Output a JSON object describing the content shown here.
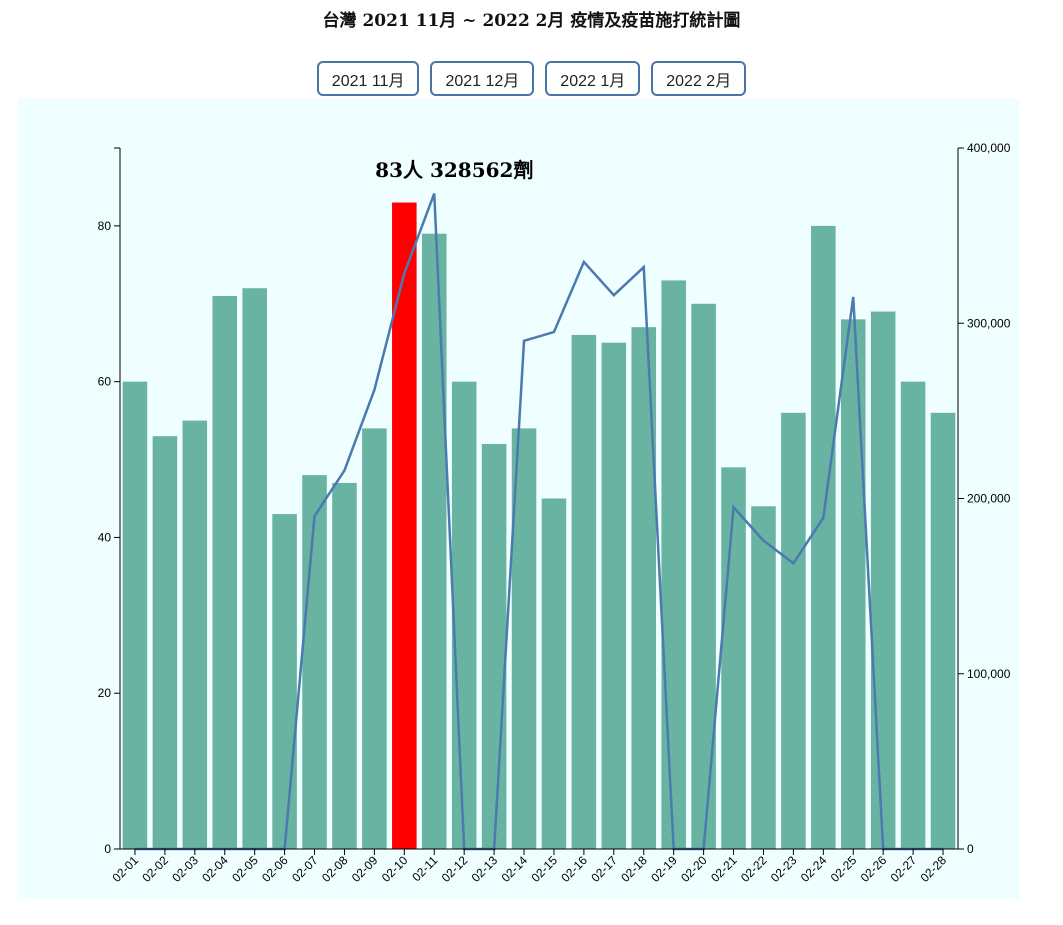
{
  "title": "台灣 2021 11月 ~ 2022 2月 疫情及疫苗施打統計圖",
  "buttons": [
    {
      "label": "2021 11月"
    },
    {
      "label": "2021 12月"
    },
    {
      "label": "2022 1月"
    },
    {
      "label": "2022 2月"
    }
  ],
  "colors": {
    "bar": "#69b3a2",
    "highlight_bar": "#ff0000",
    "line": "#4a7ab0",
    "background": "#effefe"
  },
  "chart_data": {
    "type": "bar",
    "categories": [
      "02-01",
      "02-02",
      "02-03",
      "02-04",
      "02-05",
      "02-06",
      "02-07",
      "02-08",
      "02-09",
      "02-10",
      "02-11",
      "02-12",
      "02-13",
      "02-14",
      "02-15",
      "02-16",
      "02-17",
      "02-18",
      "02-19",
      "02-20",
      "02-21",
      "02-22",
      "02-23",
      "02-24",
      "02-25",
      "02-26",
      "02-27",
      "02-28"
    ],
    "series": [
      {
        "type": "bar",
        "axis": "left",
        "values": [
          60,
          53,
          55,
          71,
          72,
          43,
          48,
          47,
          54,
          83,
          79,
          60,
          52,
          54,
          45,
          66,
          65,
          67,
          73,
          70,
          49,
          44,
          56,
          80,
          68,
          69,
          60,
          56
        ]
      },
      {
        "type": "line",
        "axis": "right",
        "values": [
          0,
          0,
          0,
          0,
          0,
          0,
          190000,
          216000,
          262000,
          328562,
          374000,
          0,
          0,
          290000,
          295000,
          335000,
          316000,
          332000,
          0,
          0,
          195000,
          176000,
          163000,
          189000,
          315000,
          0,
          0,
          0
        ]
      }
    ],
    "left_axis": {
      "ylim": [
        0,
        90
      ],
      "ticks": [
        0,
        20,
        40,
        60,
        80
      ]
    },
    "right_axis": {
      "ylim": [
        0,
        400000
      ],
      "ticks": [
        0,
        100000,
        200000,
        300000,
        400000
      ],
      "tick_labels": [
        "0",
        "100,000",
        "200,000",
        "300,000",
        "400,000"
      ]
    },
    "highlight": {
      "category": "02-10",
      "label": "83人 328562劑"
    }
  }
}
